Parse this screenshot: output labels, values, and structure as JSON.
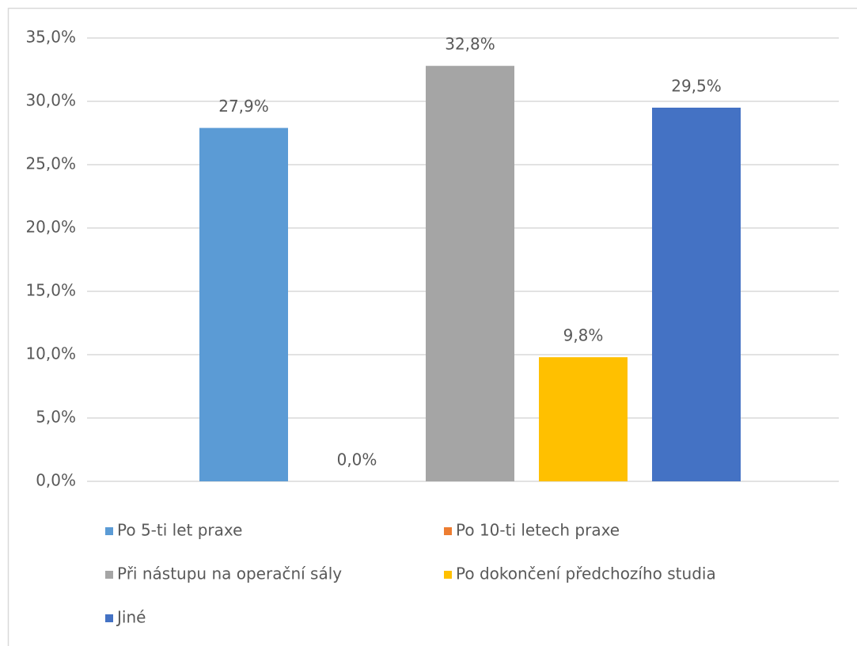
{
  "chart_data": {
    "type": "bar",
    "categories": [
      null
    ],
    "series": [
      {
        "name": "Po 5-ti let praxe",
        "color": "#5b9bd5",
        "values": [
          27.9
        ],
        "value_labels": [
          "27,9%"
        ]
      },
      {
        "name": "Po 10-ti letech praxe",
        "color": "#ed7d31",
        "values": [
          0.0
        ],
        "value_labels": [
          "0,0%"
        ]
      },
      {
        "name": "Při nástupu na operační sály",
        "color": "#a5a5a5",
        "values": [
          32.8
        ],
        "value_labels": [
          "32,8%"
        ]
      },
      {
        "name": "Po dokončení předchozího studia",
        "color": "#ffc000",
        "values": [
          9.8
        ],
        "value_labels": [
          "9,8%"
        ]
      },
      {
        "name": "Jiné",
        "color": "#4472c4",
        "values": [
          29.5
        ],
        "value_labels": [
          "29,5%"
        ]
      }
    ],
    "ylim": [
      0,
      35
    ],
    "yticks": [
      {
        "value": 0,
        "label": "0,0%"
      },
      {
        "value": 5,
        "label": "5,0%"
      },
      {
        "value": 10,
        "label": "10,0%"
      },
      {
        "value": 15,
        "label": "15,0%"
      },
      {
        "value": 20,
        "label": "20,0%"
      },
      {
        "value": 25,
        "label": "25,0%"
      },
      {
        "value": 30,
        "label": "30,0%"
      },
      {
        "value": 35,
        "label": "35,0%"
      }
    ],
    "grid": true,
    "legend": "bottom"
  }
}
